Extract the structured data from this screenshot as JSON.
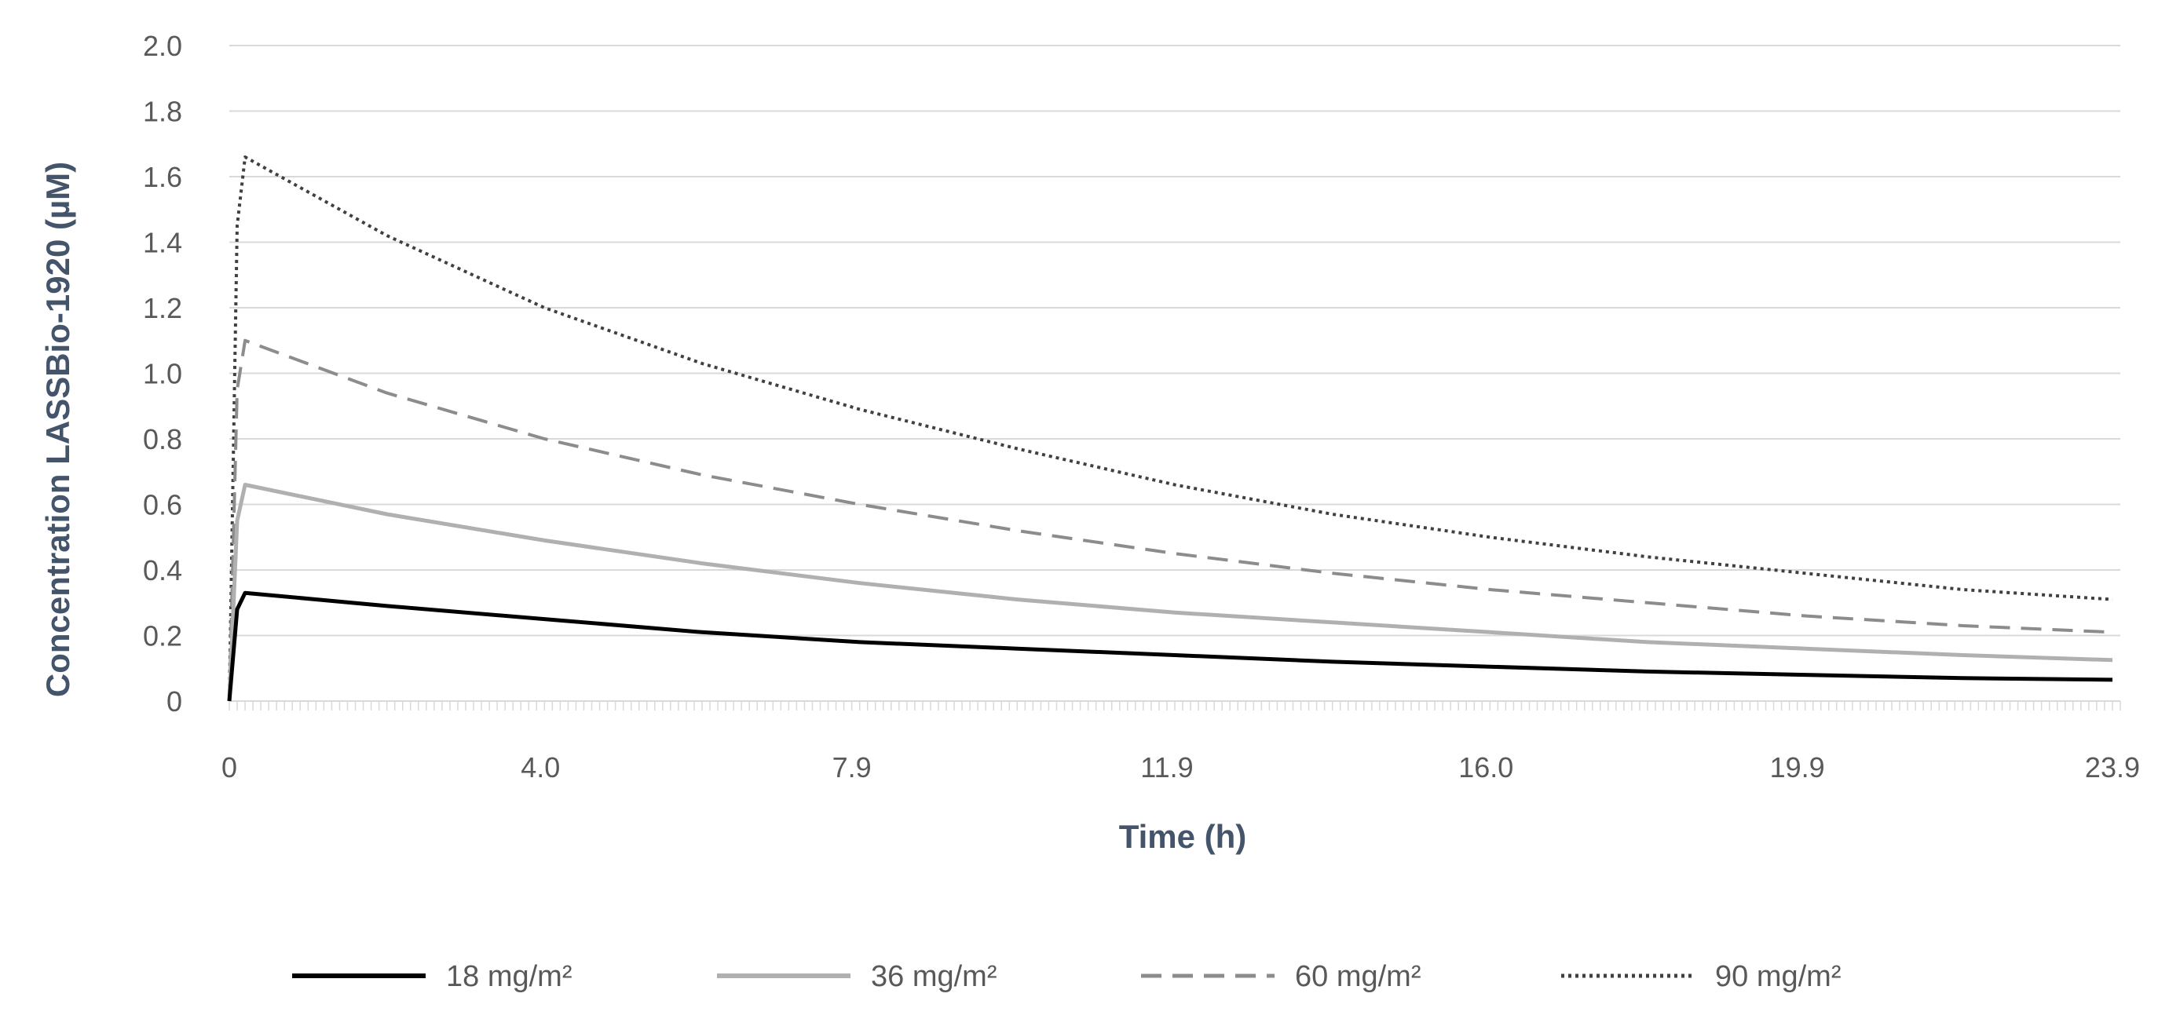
{
  "chart_data": {
    "type": "line",
    "title": "",
    "xlabel": "Time (h)",
    "ylabel": "Concentration LASSBio-1920 (µM)",
    "xlim": [
      0,
      24
    ],
    "ylim": [
      0,
      2.0
    ],
    "x_ticks": [
      {
        "value": 0,
        "label": "0"
      },
      {
        "value": 3.95,
        "label": "4.0"
      },
      {
        "value": 7.9,
        "label": "7.9"
      },
      {
        "value": 11.9,
        "label": "11.9"
      },
      {
        "value": 15.95,
        "label": "16.0"
      },
      {
        "value": 19.9,
        "label": "19.9"
      },
      {
        "value": 23.9,
        "label": "23.9"
      }
    ],
    "y_ticks": [
      {
        "value": 0,
        "label": "0"
      },
      {
        "value": 0.2,
        "label": "0.2"
      },
      {
        "value": 0.4,
        "label": "0.4"
      },
      {
        "value": 0.6,
        "label": "0.6"
      },
      {
        "value": 0.8,
        "label": "0.8"
      },
      {
        "value": 1.0,
        "label": "1.0"
      },
      {
        "value": 1.2,
        "label": "1.2"
      },
      {
        "value": 1.4,
        "label": "1.4"
      },
      {
        "value": 1.6,
        "label": "1.6"
      },
      {
        "value": 1.8,
        "label": "1.8"
      },
      {
        "value": 2.0,
        "label": "2.0"
      }
    ],
    "grid": true,
    "legend_position": "bottom",
    "series": [
      {
        "name": "18 mg/m²",
        "color": "#000000",
        "dash": "solid",
        "x": [
          0,
          0.1,
          0.2,
          2,
          4,
          6,
          8,
          10,
          12,
          14,
          16,
          18,
          20,
          22,
          23.9
        ],
        "y": [
          0,
          0.28,
          0.33,
          0.29,
          0.25,
          0.21,
          0.18,
          0.16,
          0.14,
          0.12,
          0.105,
          0.09,
          0.08,
          0.07,
          0.065
        ]
      },
      {
        "name": "36 mg/m²",
        "color": "#b0b0b0",
        "dash": "solid",
        "x": [
          0,
          0.1,
          0.2,
          2,
          4,
          6,
          8,
          10,
          12,
          14,
          16,
          18,
          20,
          22,
          23.9
        ],
        "y": [
          0,
          0.55,
          0.66,
          0.57,
          0.49,
          0.42,
          0.36,
          0.31,
          0.27,
          0.24,
          0.21,
          0.18,
          0.16,
          0.14,
          0.125
        ]
      },
      {
        "name": "60 mg/m²",
        "color": "#8c8c8c",
        "dash": "dashed",
        "x": [
          0,
          0.1,
          0.2,
          2,
          4,
          6,
          8,
          10,
          12,
          14,
          16,
          18,
          20,
          22,
          23.9
        ],
        "y": [
          0,
          0.95,
          1.1,
          0.94,
          0.8,
          0.69,
          0.6,
          0.52,
          0.45,
          0.39,
          0.34,
          0.3,
          0.26,
          0.23,
          0.21
        ]
      },
      {
        "name": "90 mg/m²",
        "color": "#404040",
        "dash": "dotted",
        "x": [
          0,
          0.1,
          0.2,
          2,
          4,
          6,
          8,
          10,
          12,
          14,
          16,
          18,
          20,
          22,
          23.9
        ],
        "y": [
          0,
          1.45,
          1.66,
          1.42,
          1.2,
          1.03,
          0.89,
          0.77,
          0.66,
          0.57,
          0.5,
          0.44,
          0.39,
          0.34,
          0.31
        ]
      }
    ]
  }
}
